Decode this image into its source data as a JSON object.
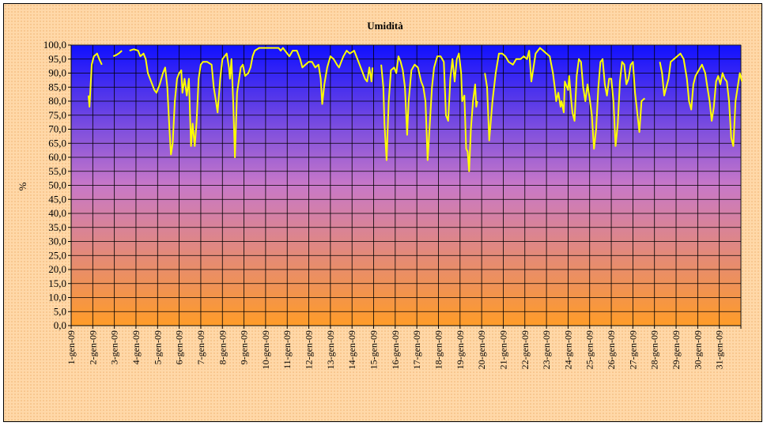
{
  "chart_data": {
    "type": "line",
    "title": "Umidità",
    "xlabel": "",
    "ylabel": "%",
    "ylim": [
      0,
      100
    ],
    "y_tick_step": 5,
    "y_tick_labels": [
      "0,0",
      "5,0",
      "10,0",
      "15,0",
      "20,0",
      "25,0",
      "30,0",
      "35,0",
      "40,0",
      "45,0",
      "50,0",
      "55,0",
      "60,0",
      "65,0",
      "70,0",
      "75,0",
      "80,0",
      "85,0",
      "90,0",
      "95,0",
      "100,0"
    ],
    "categories": [
      "1-gen-09",
      "2-gen-09",
      "3-gen-09",
      "4-gen-09",
      "5-gen-09",
      "6-gen-09",
      "7-gen-09",
      "8-gen-09",
      "9-gen-09",
      "10-gen-09",
      "11-gen-09",
      "12-gen-09",
      "13-gen-09",
      "14-gen-09",
      "15-gen-09",
      "16-gen-09",
      "17-gen-09",
      "18-gen-09",
      "19-gen-09",
      "20-gen-09",
      "21-gen-09",
      "22-gen-09",
      "23-gen-09",
      "24-gen-09",
      "25-gen-09",
      "26-gen-09",
      "27-gen-09",
      "28-gen-09",
      "29-gen-09",
      "30-gen-09",
      "31-gen-09"
    ],
    "grid": true,
    "legend": "none",
    "colors": {
      "line": "#ffff00",
      "plot_top": "#1010ff",
      "plot_mid": "#c878c8",
      "plot_bottom": "#ff9c28",
      "frame_bg": "#ffd8a8",
      "grid": "#000000"
    },
    "series": [
      {
        "points": [
          [
            1.8,
            82
          ],
          [
            1.85,
            78
          ],
          [
            1.95,
            93
          ],
          [
            2.05,
            96
          ],
          [
            2.2,
            97
          ],
          [
            2.3,
            95
          ],
          [
            2.42,
            93
          ],
          null,
          [
            2.95,
            96
          ],
          [
            3.1,
            96.5
          ],
          [
            3.2,
            97
          ],
          [
            3.35,
            98
          ],
          null,
          [
            3.7,
            98
          ],
          [
            3.9,
            98.5
          ],
          [
            4.1,
            98
          ],
          [
            4.2,
            96
          ],
          [
            4.35,
            97
          ],
          [
            4.45,
            95
          ],
          [
            4.55,
            90
          ],
          [
            4.7,
            87
          ],
          [
            4.85,
            84
          ],
          [
            4.95,
            83
          ],
          [
            5.1,
            86
          ],
          [
            5.25,
            90
          ],
          [
            5.35,
            92
          ],
          [
            5.45,
            85
          ],
          [
            5.55,
            70
          ],
          [
            5.62,
            61
          ],
          [
            5.7,
            65
          ],
          [
            5.8,
            80
          ],
          [
            5.9,
            88
          ],
          [
            6.0,
            90
          ],
          [
            6.1,
            91
          ],
          [
            6.15,
            83
          ],
          [
            6.25,
            88
          ],
          [
            6.35,
            82
          ],
          [
            6.45,
            88
          ],
          [
            6.55,
            64
          ],
          [
            6.62,
            72
          ],
          [
            6.72,
            64
          ],
          [
            6.8,
            72
          ],
          [
            6.9,
            88
          ],
          [
            7.0,
            93
          ],
          [
            7.1,
            94
          ],
          [
            7.3,
            94
          ],
          [
            7.5,
            93
          ],
          [
            7.6,
            85
          ],
          [
            7.7,
            80
          ],
          [
            7.78,
            76
          ],
          [
            7.9,
            88
          ],
          [
            8.0,
            95
          ],
          [
            8.1,
            96
          ],
          [
            8.2,
            97
          ],
          [
            8.3,
            92
          ],
          [
            8.35,
            88
          ],
          [
            8.42,
            95
          ],
          [
            8.5,
            80
          ],
          [
            8.58,
            60
          ],
          [
            8.68,
            83
          ],
          [
            8.85,
            92
          ],
          [
            8.95,
            93
          ],
          [
            9.05,
            89
          ],
          [
            9.2,
            90
          ],
          [
            9.3,
            92
          ],
          [
            9.4,
            96
          ],
          [
            9.5,
            98
          ],
          [
            9.7,
            99
          ],
          [
            10.0,
            99
          ],
          [
            10.3,
            99
          ],
          [
            10.6,
            99
          ],
          [
            10.7,
            98
          ],
          [
            10.8,
            99
          ],
          [
            11.0,
            97
          ],
          [
            11.1,
            96
          ],
          [
            11.25,
            98
          ],
          [
            11.45,
            98
          ],
          [
            11.6,
            95
          ],
          [
            11.7,
            92
          ],
          [
            11.85,
            93
          ],
          [
            12.0,
            94
          ],
          [
            12.15,
            94
          ],
          [
            12.3,
            92
          ],
          [
            12.45,
            93
          ],
          [
            12.55,
            88
          ],
          [
            12.62,
            79
          ],
          [
            12.72,
            86
          ],
          [
            12.85,
            92
          ],
          [
            13.0,
            96
          ],
          [
            13.15,
            95
          ],
          [
            13.3,
            93
          ],
          [
            13.4,
            92
          ],
          [
            13.5,
            94
          ],
          [
            13.6,
            96
          ],
          [
            13.75,
            98
          ],
          [
            13.9,
            97
          ],
          [
            14.1,
            98
          ],
          [
            14.2,
            96
          ],
          [
            14.35,
            93
          ],
          [
            14.5,
            90
          ],
          [
            14.6,
            88
          ],
          [
            14.7,
            87
          ],
          [
            14.8,
            92
          ],
          [
            14.9,
            87
          ],
          [
            14.95,
            92
          ],
          null,
          [
            15.35,
            93
          ],
          [
            15.45,
            85
          ],
          [
            15.5,
            72
          ],
          [
            15.6,
            59
          ],
          [
            15.7,
            80
          ],
          [
            15.8,
            91
          ],
          [
            15.95,
            92
          ],
          [
            16.05,
            90
          ],
          [
            16.15,
            96
          ],
          [
            16.25,
            94
          ],
          [
            16.35,
            91
          ],
          [
            16.45,
            85
          ],
          [
            16.55,
            68
          ],
          [
            16.62,
            80
          ],
          [
            16.75,
            91
          ],
          [
            16.9,
            93
          ],
          [
            17.05,
            92
          ],
          [
            17.2,
            87
          ],
          [
            17.3,
            85
          ],
          [
            17.4,
            80
          ],
          [
            17.5,
            59
          ],
          [
            17.6,
            72
          ],
          [
            17.7,
            85
          ],
          [
            17.8,
            92
          ],
          [
            17.95,
            96
          ],
          [
            18.1,
            96
          ],
          [
            18.25,
            94
          ],
          [
            18.35,
            75
          ],
          [
            18.45,
            73
          ],
          [
            18.55,
            88
          ],
          [
            18.65,
            95
          ],
          [
            18.75,
            87
          ],
          [
            18.85,
            95
          ],
          [
            18.95,
            97
          ],
          [
            19.05,
            90
          ],
          [
            19.1,
            80
          ],
          [
            19.2,
            82
          ],
          [
            19.28,
            63
          ],
          [
            19.35,
            62
          ],
          [
            19.42,
            55
          ],
          [
            19.5,
            70
          ],
          [
            19.6,
            80
          ],
          [
            19.7,
            86
          ],
          [
            19.75,
            78
          ],
          [
            19.8,
            80
          ],
          null,
          [
            20.15,
            90
          ],
          [
            20.25,
            85
          ],
          [
            20.35,
            66
          ],
          [
            20.5,
            80
          ],
          [
            20.65,
            90
          ],
          [
            20.8,
            97
          ],
          [
            20.95,
            97
          ],
          [
            21.1,
            96
          ],
          [
            21.25,
            94
          ],
          [
            21.45,
            93
          ],
          [
            21.6,
            95
          ],
          [
            21.8,
            95
          ],
          [
            21.95,
            96
          ],
          [
            22.1,
            95
          ],
          [
            22.2,
            98
          ],
          [
            22.3,
            87
          ],
          [
            22.4,
            92
          ],
          [
            22.5,
            97
          ],
          [
            22.7,
            99
          ],
          [
            22.85,
            98
          ],
          [
            23.0,
            97
          ],
          [
            23.15,
            96
          ],
          [
            23.3,
            90
          ],
          [
            23.4,
            84
          ],
          [
            23.45,
            80
          ],
          [
            23.55,
            83
          ],
          [
            23.65,
            78
          ],
          [
            23.7,
            80
          ],
          [
            23.8,
            76
          ],
          [
            23.85,
            87
          ],
          [
            24.0,
            84
          ],
          [
            24.05,
            89
          ],
          [
            24.15,
            80
          ],
          [
            24.2,
            76
          ],
          [
            24.3,
            73
          ],
          [
            24.4,
            89
          ],
          [
            24.5,
            95
          ],
          [
            24.6,
            94
          ],
          [
            24.7,
            85
          ],
          [
            24.8,
            80
          ],
          [
            24.9,
            86
          ],
          [
            25.0,
            81
          ],
          [
            25.1,
            75
          ],
          [
            25.2,
            63
          ],
          [
            25.3,
            70
          ],
          [
            25.4,
            85
          ],
          [
            25.5,
            94
          ],
          [
            25.6,
            95
          ],
          [
            25.7,
            86
          ],
          [
            25.8,
            82
          ],
          [
            25.9,
            88
          ],
          [
            26.0,
            88
          ],
          [
            26.1,
            80
          ],
          [
            26.2,
            64
          ],
          [
            26.3,
            72
          ],
          [
            26.4,
            87
          ],
          [
            26.5,
            94
          ],
          [
            26.6,
            93
          ],
          [
            26.7,
            86
          ],
          [
            26.8,
            88
          ],
          [
            26.9,
            93
          ],
          [
            27.0,
            94
          ],
          [
            27.1,
            83
          ],
          [
            27.2,
            76
          ],
          [
            27.3,
            69
          ],
          [
            27.4,
            80
          ],
          [
            27.55,
            81
          ],
          null,
          [
            28.25,
            94
          ],
          [
            28.35,
            90
          ],
          [
            28.45,
            82
          ],
          [
            28.55,
            85
          ],
          [
            28.65,
            88
          ],
          [
            28.75,
            94
          ],
          [
            28.9,
            95
          ],
          [
            29.05,
            96
          ],
          [
            29.2,
            97
          ],
          [
            29.35,
            95
          ],
          [
            29.5,
            88
          ],
          [
            29.6,
            80
          ],
          [
            29.7,
            77
          ],
          [
            29.8,
            86
          ],
          [
            29.9,
            89
          ],
          [
            30.05,
            91
          ],
          [
            30.2,
            93
          ],
          [
            30.35,
            90
          ],
          [
            30.45,
            85
          ],
          [
            30.55,
            80
          ],
          [
            30.65,
            73
          ],
          [
            30.75,
            78
          ],
          [
            30.85,
            87
          ],
          [
            30.95,
            89
          ],
          [
            31.05,
            86
          ],
          [
            31.15,
            90
          ],
          [
            31.25,
            88
          ],
          [
            31.35,
            87
          ],
          [
            31.45,
            80
          ],
          [
            31.55,
            67
          ],
          [
            31.65,
            64
          ],
          [
            31.75,
            80
          ],
          [
            31.85,
            85
          ],
          [
            31.95,
            90
          ],
          [
            32.05,
            87
          ]
        ]
      }
    ]
  }
}
